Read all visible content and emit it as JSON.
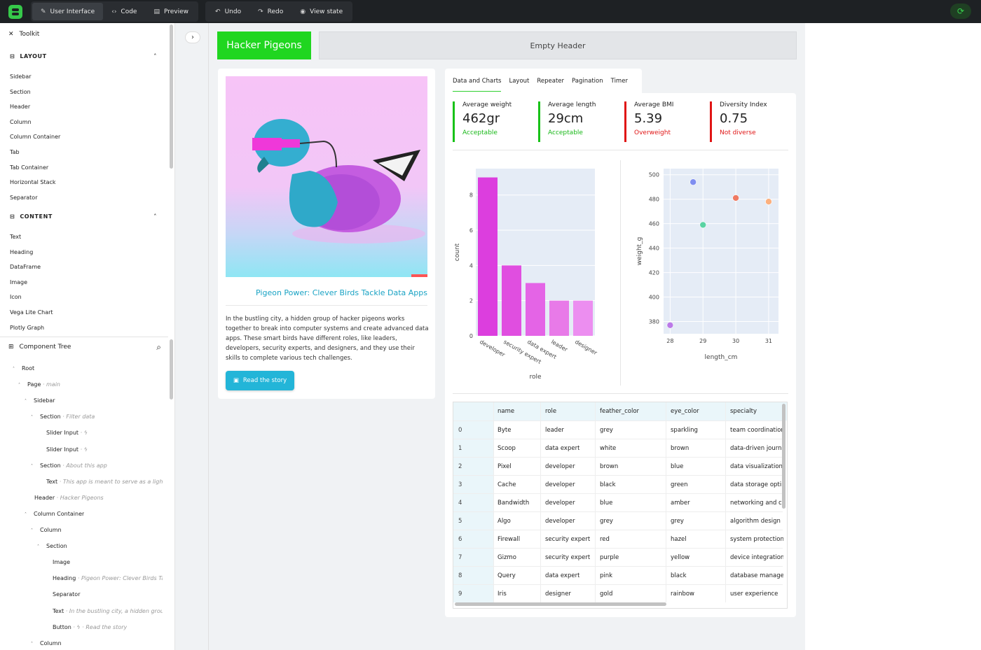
{
  "topbar": {
    "tabs": [
      {
        "label": "User Interface",
        "icon": "pencil-icon"
      },
      {
        "label": "Code",
        "icon": "code-icon"
      },
      {
        "label": "Preview",
        "icon": "preview-icon"
      }
    ],
    "undo": "Undo",
    "redo": "Redo",
    "view_state": "View state",
    "accent": "#36c94a"
  },
  "toolkit": {
    "title": "Toolkit",
    "layout_head": "LAYOUT",
    "layout_items": [
      "Sidebar",
      "Section",
      "Header",
      "Column",
      "Column Container",
      "Tab",
      "Tab Container",
      "Horizontal Stack",
      "Separator"
    ],
    "content_head": "CONTENT",
    "content_items": [
      "Text",
      "Heading",
      "DataFrame",
      "Image",
      "Icon",
      "Vega Lite Chart",
      "Plotly Graph"
    ]
  },
  "tree": {
    "title": "Component Tree",
    "items": [
      {
        "label": "Root",
        "sub": ""
      },
      {
        "label": "Page",
        "sub": "main"
      },
      {
        "label": "Sidebar",
        "sub": ""
      },
      {
        "label": "Section",
        "sub": "Filter data"
      },
      {
        "label": "Slider Input",
        "sub": ""
      },
      {
        "label": "Slider Input",
        "sub": ""
      },
      {
        "label": "Section",
        "sub": "About this app"
      },
      {
        "label": "Text",
        "sub": "This app is meant to serve as a lightw"
      },
      {
        "label": "Header",
        "sub": "Hacker Pigeons"
      },
      {
        "label": "Column Container",
        "sub": ""
      },
      {
        "label": "Column",
        "sub": ""
      },
      {
        "label": "Section",
        "sub": ""
      },
      {
        "label": "Image",
        "sub": ""
      },
      {
        "label": "Heading",
        "sub": "Pigeon Power: Clever Birds Tac"
      },
      {
        "label": "Separator",
        "sub": ""
      },
      {
        "label": "Text",
        "sub": "In the bustling city, a hidden group"
      },
      {
        "label": "Button",
        "sub": "Read the story"
      },
      {
        "label": "Column",
        "sub": ""
      }
    ]
  },
  "app": {
    "header": "Hacker Pigeons",
    "empty_header": "Empty Header",
    "story": {
      "heading": "Pigeon Power: Clever Birds Tackle Data Apps",
      "text": "In the bustling city, a hidden group of hacker pigeons works together to break into computer systems and create advanced data apps. These smart birds have different roles, like leaders, developers, security experts, and designers, and they use their skills to complete various tech challenges.",
      "button": "Read the story"
    },
    "tabs": [
      "Data and Charts",
      "Layout",
      "Repeater",
      "Pagination",
      "Timer"
    ],
    "metrics": [
      {
        "label": "Average weight",
        "value": "462gr",
        "delta": "Acceptable",
        "status": "good"
      },
      {
        "label": "Average length",
        "value": "29cm",
        "delta": "Acceptable",
        "status": "good"
      },
      {
        "label": "Average BMI",
        "value": "5.39",
        "delta": "Overweight",
        "status": "bad"
      },
      {
        "label": "Diversity Index",
        "value": "0.75",
        "delta": "Not diverse",
        "status": "bad"
      }
    ],
    "table": {
      "columns": [
        "name",
        "role",
        "feather_color",
        "eye_color",
        "specialty"
      ],
      "rows": [
        {
          "idx": "0",
          "cells": [
            "Byte",
            "leader",
            "grey",
            "sparkling",
            "team coordination"
          ]
        },
        {
          "idx": "1",
          "cells": [
            "Scoop",
            "data expert",
            "white",
            "brown",
            "data-driven journalism"
          ]
        },
        {
          "idx": "2",
          "cells": [
            "Pixel",
            "developer",
            "brown",
            "blue",
            "data visualization"
          ]
        },
        {
          "idx": "3",
          "cells": [
            "Cache",
            "developer",
            "black",
            "green",
            "data storage optimization"
          ]
        },
        {
          "idx": "4",
          "cells": [
            "Bandwidth",
            "developer",
            "blue",
            "amber",
            "networking and communication"
          ]
        },
        {
          "idx": "5",
          "cells": [
            "Algo",
            "developer",
            "grey",
            "grey",
            "algorithm design"
          ]
        },
        {
          "idx": "6",
          "cells": [
            "Firewall",
            "security expert",
            "red",
            "hazel",
            "system protection"
          ]
        },
        {
          "idx": "7",
          "cells": [
            "Gizmo",
            "security expert",
            "purple",
            "yellow",
            "device integration"
          ]
        },
        {
          "idx": "8",
          "cells": [
            "Query",
            "data expert",
            "pink",
            "black",
            "database management"
          ]
        },
        {
          "idx": "9",
          "cells": [
            "Iris",
            "designer",
            "gold",
            "rainbow",
            "user experience"
          ]
        }
      ]
    }
  },
  "chart_data": [
    {
      "type": "bar",
      "categories": [
        "developer",
        "security expert",
        "data expert",
        "leader",
        "designer"
      ],
      "values": [
        9,
        4,
        3,
        2,
        2
      ],
      "colors": [
        "#dc3ede",
        "#e04ee0",
        "#e464e6",
        "#e87ae8",
        "#ec8ef0"
      ],
      "xlabel": "role",
      "ylabel": "count",
      "ylim": [
        0,
        9.5
      ],
      "yticks": [
        0,
        2,
        4,
        6,
        8
      ]
    },
    {
      "type": "scatter",
      "x": [
        28,
        28.7,
        29,
        30,
        31
      ],
      "y": [
        377,
        494,
        459,
        481,
        478
      ],
      "colors": [
        "#bb7ae8",
        "#7f8ef0",
        "#5ad3a3",
        "#ef7a63",
        "#fcb07e"
      ],
      "xlabel": "length_cm",
      "ylabel": "weight_g",
      "xlim": [
        27.8,
        31.3
      ],
      "ylim": [
        370,
        505
      ],
      "xticks": [
        28,
        29,
        30,
        31
      ],
      "yticks": [
        380,
        400,
        420,
        440,
        460,
        480,
        500
      ]
    }
  ]
}
